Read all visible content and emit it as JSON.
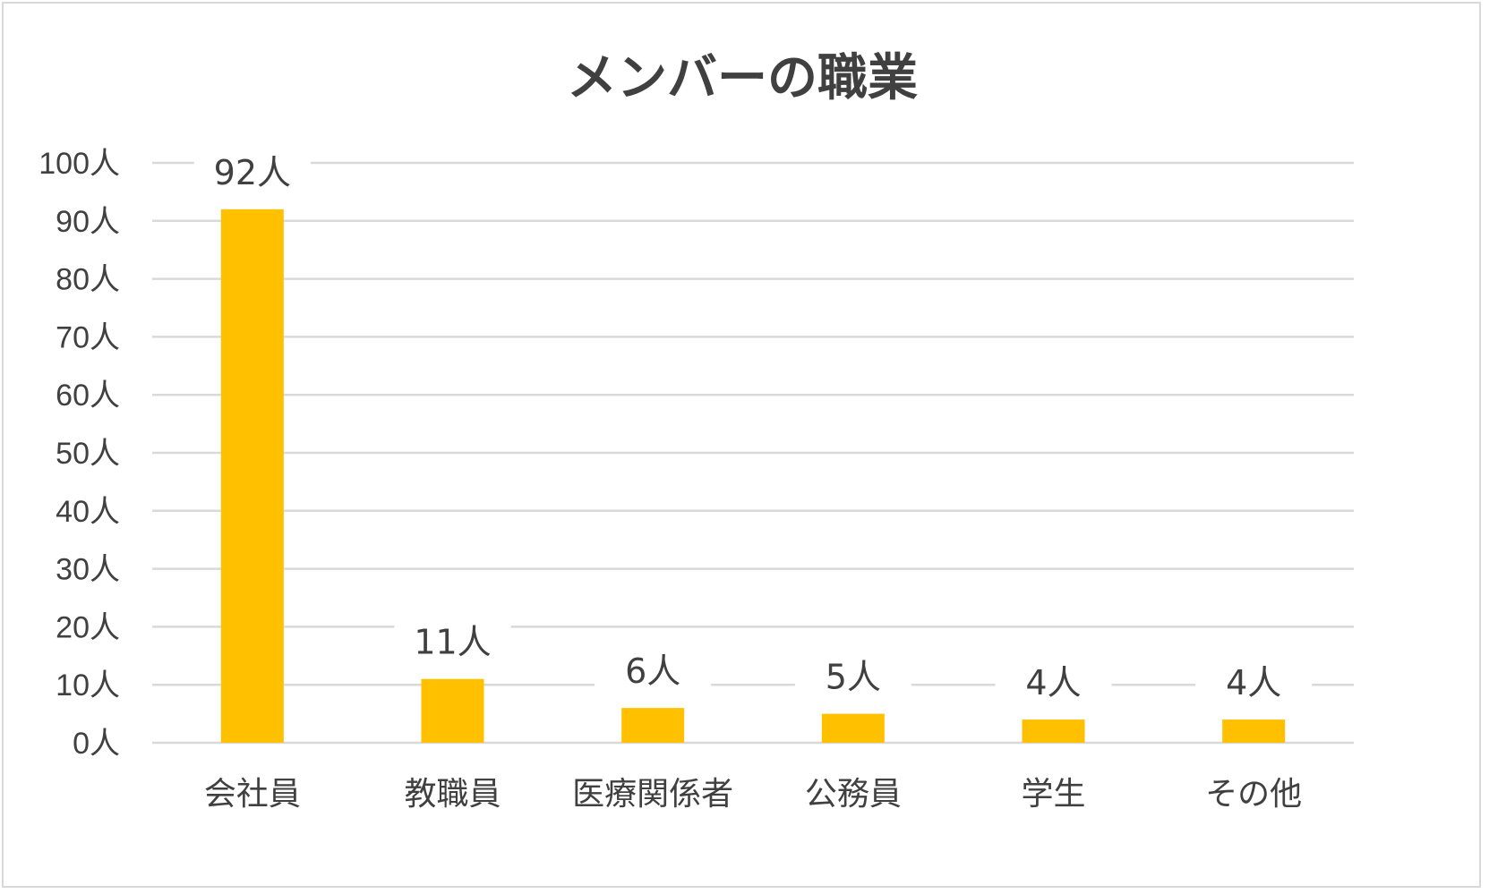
{
  "chart_data": {
    "type": "bar",
    "title": "メンバーの職業",
    "categories": [
      "会社員",
      "教職員",
      "医療関係者",
      "公務員",
      "学生",
      "その他"
    ],
    "series": [
      {
        "values": [
          92,
          11,
          6,
          5,
          4,
          4
        ],
        "data_labels": [
          "92人",
          "11人",
          "6人",
          "5人",
          "4人",
          "4人"
        ],
        "color": "#FFC000"
      }
    ],
    "yticks": [
      "0人",
      "10人",
      "20人",
      "30人",
      "40人",
      "50人",
      "60人",
      "70人",
      "80人",
      "90人",
      "100人"
    ],
    "ylim": [
      0,
      100
    ],
    "xlabel": "",
    "ylabel": "",
    "grid": true,
    "legend": "none"
  }
}
